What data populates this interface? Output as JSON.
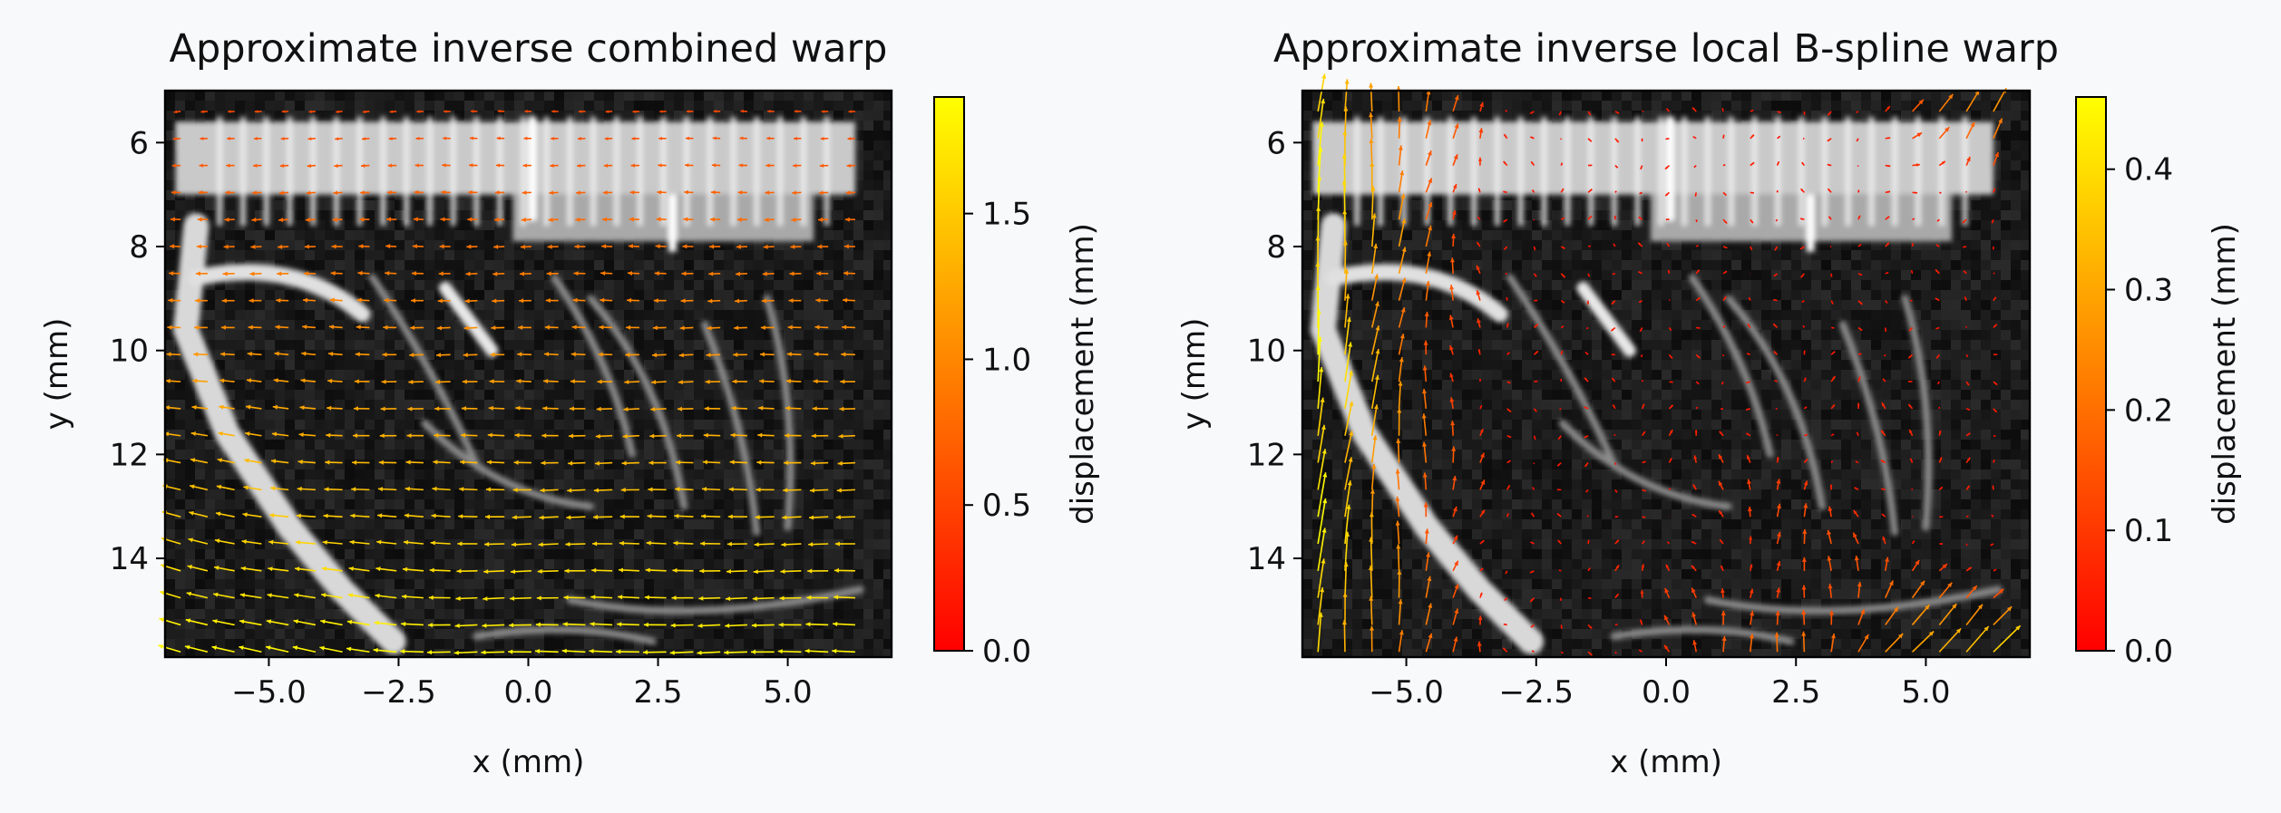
{
  "chart_data": [
    {
      "type": "quiver",
      "title": "Approximate inverse combined warp",
      "xlabel": "x (mm)",
      "ylabel": "y (mm)",
      "xlim": [
        -7.0,
        7.0
      ],
      "ylim": [
        15.9,
        5.0
      ],
      "y_axis_inverted": true,
      "xticks": [
        -5.0,
        -2.5,
        0.0,
        2.5,
        5.0
      ],
      "xtick_labels": [
        "−5.0",
        "−2.5",
        "0.0",
        "2.5",
        "5.0"
      ],
      "yticks": [
        6,
        8,
        10,
        12,
        14
      ],
      "ytick_labels": [
        "6",
        "8",
        "10",
        "12",
        "14"
      ],
      "background": "grayscale ultrasound image",
      "colormap": "autumn",
      "colorbar": {
        "label": "displacement (mm)",
        "range": [
          0.0,
          1.9
        ],
        "ticks": [
          0.0,
          0.5,
          1.0,
          1.5
        ],
        "tick_labels": [
          "0.0",
          "0.5",
          "1.0",
          "1.5"
        ]
      },
      "vector_field_summary": "leftward displacement across the field, magnitude increasing toward the bottom (about 0.6 mm at top to 1.8 mm at bottom), with a slight downward tilt on the left side"
    },
    {
      "type": "quiver",
      "title": "Approximate inverse local B-spline warp",
      "xlabel": "x (mm)",
      "ylabel": "y (mm)",
      "xlim": [
        -7.0,
        7.0
      ],
      "ylim": [
        15.9,
        5.0
      ],
      "y_axis_inverted": true,
      "xticks": [
        -5.0,
        -2.5,
        0.0,
        2.5,
        5.0
      ],
      "xtick_labels": [
        "−5.0",
        "−2.5",
        "0.0",
        "2.5",
        "5.0"
      ],
      "yticks": [
        6,
        8,
        10,
        12,
        14
      ],
      "ytick_labels": [
        "6",
        "8",
        "10",
        "12",
        "14"
      ],
      "background": "grayscale ultrasound image",
      "colormap": "autumn",
      "colorbar": {
        "label": "displacement (mm)",
        "range": [
          0.0,
          0.46
        ],
        "ticks": [
          0.0,
          0.1,
          0.2,
          0.3,
          0.4
        ],
        "tick_labels": [
          "0.0",
          "0.1",
          "0.2",
          "0.3",
          "0.4"
        ]
      },
      "vector_field_summary": "mostly upward displacement on the left edge (about 0.4 mm), small mixed vectors in the center, upward-right vectors near the top-right and bottom-right corners"
    }
  ]
}
